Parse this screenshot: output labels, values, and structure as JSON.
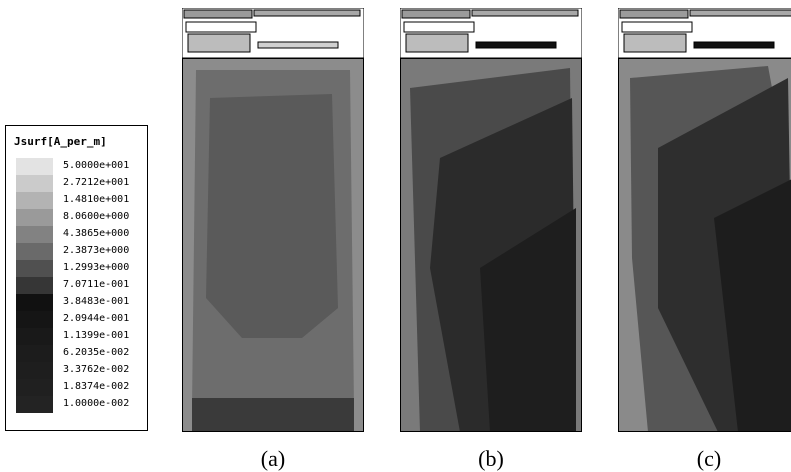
{
  "legend": {
    "title": "Jsurf[A_per_m]",
    "entries": [
      {
        "label": "5.0000e+001",
        "color": "#e3e3e3"
      },
      {
        "label": "2.7212e+001",
        "color": "#cbcbcb"
      },
      {
        "label": "1.4810e+001",
        "color": "#b3b3b3"
      },
      {
        "label": "8.0600e+000",
        "color": "#9a9a9a"
      },
      {
        "label": "4.3865e+000",
        "color": "#828282"
      },
      {
        "label": "2.3873e+000",
        "color": "#6a6a6a"
      },
      {
        "label": "1.2993e+000",
        "color": "#505050"
      },
      {
        "label": "7.0711e-001",
        "color": "#363636"
      },
      {
        "label": "3.8483e-001",
        "color": "#111111"
      },
      {
        "label": "2.0944e-001",
        "color": "#151515"
      },
      {
        "label": "1.1399e-001",
        "color": "#191919"
      },
      {
        "label": "6.2035e-002",
        "color": "#1c1c1c"
      },
      {
        "label": "3.3762e-002",
        "color": "#1e1e1e"
      },
      {
        "label": "1.8374e-002",
        "color": "#202020"
      },
      {
        "label": "1.0000e-002",
        "color": "#232323"
      }
    ]
  },
  "panels": [
    {
      "caption": "(a)",
      "palette": {
        "edge": "#8c8c8c",
        "mid": "#6d6d6d",
        "core": "#5a5a5a",
        "deep": "#3a3a3a"
      }
    },
    {
      "caption": "(b)",
      "palette": {
        "edge": "#7a7a7a",
        "mid": "#4a4a4a",
        "core": "#2b2b2b",
        "deep": "#1e1e1e"
      }
    },
    {
      "caption": "(c)",
      "palette": {
        "edge": "#8a8a8a",
        "mid": "#565656",
        "core": "#2e2e2e",
        "deep": "#1d1d1d"
      }
    }
  ]
}
